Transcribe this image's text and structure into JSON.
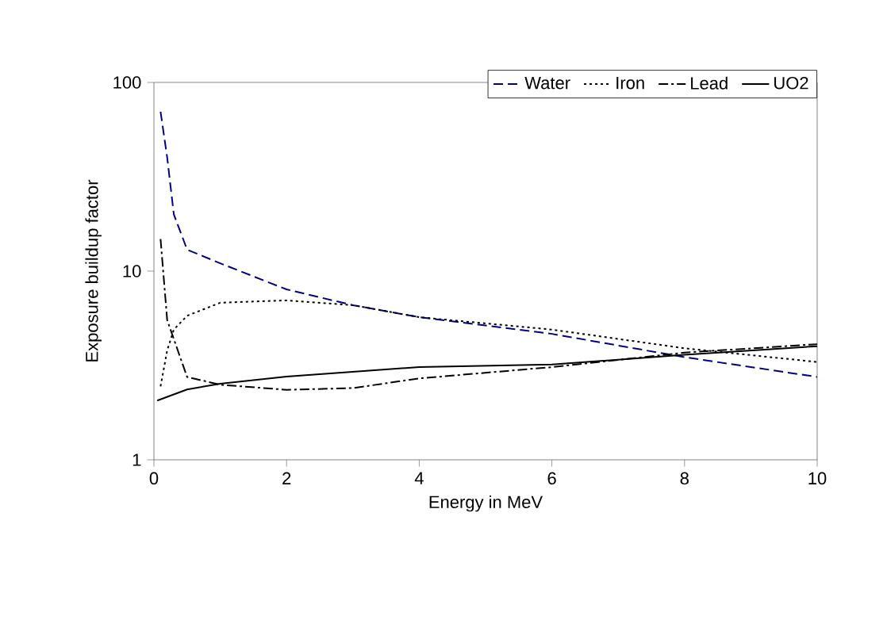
{
  "chart_data": {
    "type": "line",
    "xlabel": "Energy in MeV",
    "ylabel": "Exposure buildup factor",
    "log": "y",
    "xlim": [
      0,
      10
    ],
    "ylim": [
      1,
      100
    ],
    "xticks": [
      0,
      2,
      4,
      6,
      8,
      10
    ],
    "yticks": [
      1,
      10,
      100
    ],
    "grid": false,
    "legend": "top right",
    "marker": "none",
    "series": [
      {
        "name": "Water",
        "color": "#000080",
        "line_style": "dashed",
        "x": [
          0.1,
          0.2,
          0.3,
          0.5,
          1,
          2,
          3,
          4,
          6,
          8,
          10
        ],
        "values": [
          70,
          40,
          20,
          13,
          11,
          8,
          6.6,
          5.7,
          4.65,
          3.5,
          2.75
        ]
      },
      {
        "name": "Iron",
        "color": "#000000",
        "line_style": "dotted",
        "x": [
          0.1,
          0.2,
          0.3,
          0.5,
          1,
          2,
          3,
          4,
          6,
          8,
          10
        ],
        "values": [
          2.45,
          3.8,
          4.9,
          5.8,
          6.8,
          7,
          6.6,
          5.7,
          4.9,
          3.9,
          3.3
        ]
      },
      {
        "name": "Lead",
        "color": "#000000",
        "line_style": "dashdot",
        "x": [
          0.1,
          0.2,
          0.5,
          1,
          2,
          3,
          4,
          6,
          8,
          10
        ],
        "values": [
          14.8,
          5.5,
          2.75,
          2.5,
          2.35,
          2.4,
          2.7,
          3.1,
          3.7,
          4.1
        ]
      },
      {
        "name": "UO2",
        "color": "#000000",
        "line_style": "solid",
        "x": [
          0.05,
          0.5,
          1,
          2,
          4,
          6,
          8,
          10
        ],
        "values": [
          2.06,
          2.36,
          2.53,
          2.76,
          3.1,
          3.2,
          3.6,
          4.0
        ]
      }
    ]
  }
}
